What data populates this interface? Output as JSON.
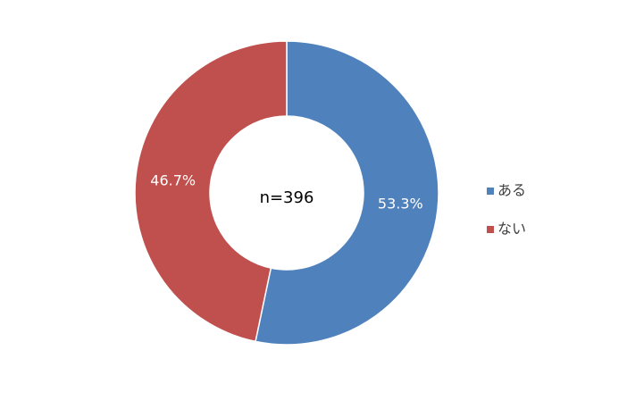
{
  "chart_data": {
    "type": "pie",
    "variant": "donut",
    "center_label": "n=396",
    "categories": [
      "ある",
      "ない"
    ],
    "values": [
      53.3,
      46.7
    ],
    "value_labels": [
      "53.3%",
      "46.7%"
    ],
    "colors": [
      "#4F81BD",
      "#C0504D"
    ],
    "legend_position": "right",
    "title": ""
  }
}
